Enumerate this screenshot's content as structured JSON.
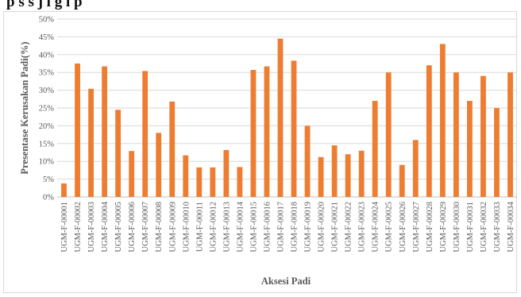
{
  "caption_fragment": "p   s   s   j   l   g   l   p",
  "chart_data": {
    "type": "bar",
    "xlabel": "Aksesi Padi",
    "ylabel": "Presentase Kerusakan Padi(%)",
    "ylim": [
      0,
      50
    ],
    "y_ticks": [
      "0%",
      "5%",
      "10%",
      "15%",
      "20%",
      "25%",
      "30%",
      "35%",
      "40%",
      "45%",
      "50%"
    ],
    "grid": true,
    "bar_color": "#ED7D31",
    "categories": [
      "UGM-F-00001",
      "UGM-F-00002",
      "UGM-F-00003",
      "UGM-F-00004",
      "UGM-F-00005",
      "UGM-F-00006",
      "UGM-F-00007",
      "UGM-F-00008",
      "UGM-F-00009",
      "UGM-F-00010",
      "UGM-F-00011",
      "UGM-F-00012",
      "UGM-F-00013",
      "UGM-F-00014",
      "UGM-F-00015",
      "UGM-F-00016",
      "UGM-F-00017",
      "UGM-F-00018",
      "UGM-F-00019",
      "UGM-F-00020",
      "UGM-F-00021",
      "UGM-F-00022",
      "UGM-F-00023",
      "UGM-F-00024",
      "UGM-F-00025",
      "UGM-F-00026",
      "UGM-F-00027",
      "UGM-F-00028",
      "UGM-F-00029",
      "UGM-F-00030",
      "UGM-F-00031",
      "UGM-F-00032",
      "UGM-F-00033",
      "UGM-F-00034"
    ],
    "values": [
      3.8,
      37.5,
      30.4,
      36.7,
      24.5,
      12.9,
      35.4,
      18.0,
      26.8,
      11.7,
      8.3,
      8.3,
      13.2,
      8.4,
      35.7,
      36.7,
      44.5,
      38.3,
      20.0,
      11.2,
      14.5,
      12.0,
      13.0,
      27.0,
      35.0,
      9.0,
      16.0,
      37.0,
      43.0,
      35.0,
      27.0,
      34.0,
      25.0,
      35.0
    ]
  }
}
